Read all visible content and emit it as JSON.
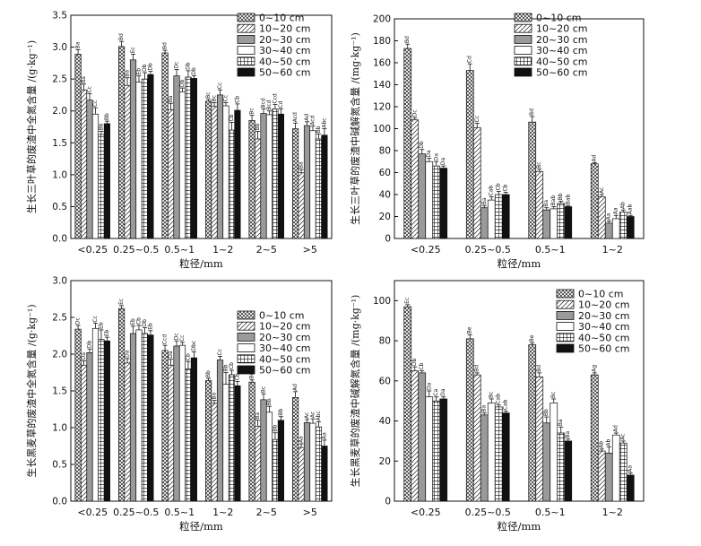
{
  "legend_entries": [
    "0~10 cm",
    "10~20 cm",
    "20~30 cm",
    "30~40 cm",
    "40~50 cm",
    "50~60 cm"
  ],
  "chart_data": [
    {
      "type": "bar",
      "ylabel": "生长三叶草的废渣中全氮含量 /(g·kg⁻¹)",
      "xlabel": "粒径/mm",
      "categories": [
        "<0.25",
        "0.25~0.5",
        "0.5~1",
        "1~2",
        "2~5",
        ">5"
      ],
      "ylim": [
        0,
        3.5
      ],
      "yticks": [
        0,
        0.5,
        1.0,
        1.5,
        2.0,
        2.5,
        3.0,
        3.5
      ],
      "series": [
        {
          "name": "0~10 cm",
          "values": [
            2.89,
            3.01,
            2.91,
            2.15,
            1.85,
            1.72
          ],
          "errors": [
            0.07,
            0.08,
            0.04,
            0.03,
            0.08,
            0.09
          ],
          "labels": [
            "Ba",
            "Bd",
            "Bd",
            "Bc",
            "Bc",
            "Acd"
          ]
        },
        {
          "name": "10~20 cm",
          "values": [
            2.33,
            2.4,
            2.02,
            2.07,
            1.56,
            1.03
          ],
          "errors": [
            0.09,
            0.12,
            0.1,
            0.06,
            0.12,
            0.05
          ],
          "labels": [
            "Ba",
            "Ba",
            "Ba",
            "Bc",
            "Bb",
            "Ba"
          ]
        },
        {
          "name": "20~30 cm",
          "values": [
            2.17,
            2.8,
            2.55,
            2.25,
            1.96,
            1.77
          ],
          "errors": [
            0.1,
            0.09,
            0.1,
            0.08,
            0.07,
            0.06
          ],
          "labels": [
            "Cc",
            "Ec",
            "Dc",
            "Cc",
            "Bcd",
            "Ad"
          ]
        },
        {
          "name": "30~40 cm",
          "values": [
            1.95,
            2.45,
            2.3,
            2.08,
            1.94,
            1.69
          ],
          "errors": [
            0.1,
            0.1,
            0.06,
            0.05,
            0.06,
            0.07
          ],
          "labels": [
            "Cc",
            "Eb",
            "Db",
            "Cc",
            "Bcd",
            "Acd"
          ]
        },
        {
          "name": "40~50 cm",
          "values": [
            1.63,
            2.5,
            2.53,
            1.7,
            2.03,
            1.56
          ],
          "errors": [
            0.05,
            0.1,
            0.1,
            0.12,
            0.07,
            0.08
          ],
          "labels": [
            "Bb",
            "Db",
            "Db",
            "Cb",
            "Ccd",
            "Bb"
          ]
        },
        {
          "name": "50~60 cm",
          "values": [
            1.8,
            2.57,
            2.51,
            2.01,
            1.95,
            1.62
          ],
          "errors": [
            0.04,
            0.05,
            0.04,
            0.1,
            0.08,
            0.1
          ],
          "labels": [
            "Bb",
            "Db",
            "Db",
            "Cb",
            "Cd",
            "Abc"
          ]
        }
      ]
    },
    {
      "type": "bar",
      "ylabel": "生长三叶草的废渣中碱解氮含量 /(mg·kg⁻¹)",
      "xlabel": "粒径/mm",
      "categories": [
        "<0.25",
        "0.25~0.5",
        "0.5~1",
        "1~2"
      ],
      "ylim": [
        0,
        200
      ],
      "yticks": [
        0,
        20,
        40,
        60,
        80,
        100,
        120,
        140,
        160,
        180,
        200
      ],
      "series": [
        {
          "name": "0~10 cm",
          "values": [
            173,
            153,
            106,
            68
          ],
          "errors": [
            4,
            6,
            5,
            1
          ],
          "labels": [
            "Bd",
            "Cd",
            "Bd",
            "Ad"
          ]
        },
        {
          "name": "10~20 cm",
          "values": [
            108,
            101,
            61,
            38
          ],
          "errors": [
            2,
            4,
            2,
            2
          ],
          "labels": [
            "Dc",
            "Cc",
            "Bc",
            "Ac"
          ]
        },
        {
          "name": "20~30 cm",
          "values": [
            77,
            28,
            26,
            14
          ],
          "errors": [
            4,
            2,
            2,
            2
          ],
          "labels": [
            "Db",
            "Ba",
            "Ba",
            "Aa"
          ]
        },
        {
          "name": "30~40 cm",
          "values": [
            70,
            35,
            27,
            18
          ],
          "errors": [
            3,
            3,
            2,
            3
          ],
          "labels": [
            "Da",
            "Cab",
            "Bab",
            "Aa"
          ]
        },
        {
          "name": "40~50 cm",
          "values": [
            66,
            40,
            32,
            24
          ],
          "errors": [
            4,
            3,
            2,
            2
          ],
          "labels": [
            "Da",
            "Cb",
            "Bb",
            "Ab"
          ]
        },
        {
          "name": "50~60 cm",
          "values": [
            64,
            40,
            29,
            20
          ],
          "errors": [
            2,
            2,
            1,
            1
          ],
          "labels": [
            "Da",
            "Cb",
            "Bab",
            "Aab"
          ]
        }
      ]
    },
    {
      "type": "bar",
      "ylabel": "生长黑麦草的废渣中全氮含量 /(g·kg⁻¹)",
      "xlabel": "粒径/mm",
      "categories": [
        "<0.25",
        "0.25~0.5",
        "0.5~1",
        "1~2",
        "2~5",
        ">5"
      ],
      "ylim": [
        0,
        3.0
      ],
      "yticks": [
        0,
        0.5,
        1.0,
        1.5,
        2.0,
        2.5,
        3.0
      ],
      "series": [
        {
          "name": "0~10 cm",
          "values": [
            2.34,
            2.62,
            2.05,
            1.64,
            1.62,
            1.41
          ],
          "errors": [
            0.05,
            0.04,
            0.07,
            0.03,
            0.03,
            0.08
          ],
          "labels": [
            "Dc",
            "Ec",
            "Ccd",
            "Bb",
            "Bd",
            "Ad"
          ]
        },
        {
          "name": "10~20 cm",
          "values": [
            1.85,
            1.88,
            1.85,
            1.33,
            1.02,
            0.73
          ],
          "errors": [
            0.06,
            0.06,
            0.08,
            0.04,
            0.08,
            0.05
          ],
          "labels": [
            "Da",
            "Da",
            "Da",
            "Ba",
            "Ba",
            "Aa"
          ]
        },
        {
          "name": "20~30 cm",
          "values": [
            2.02,
            2.28,
            2.11,
            1.92,
            1.38,
            1.07
          ],
          "errors": [
            0.05,
            0.1,
            0.07,
            0.05,
            0.08,
            0.04
          ],
          "labels": [
            "Db",
            "Eb",
            "Dc",
            "Cc",
            "Bc",
            "Ac"
          ]
        },
        {
          "name": "30~40 cm",
          "values": [
            2.35,
            2.33,
            2.12,
            1.59,
            1.21,
            1.06
          ],
          "errors": [
            0.07,
            0.06,
            0.04,
            0.16,
            0.08,
            0.06
          ],
          "labels": [
            "Cc",
            "Cb",
            "Cc",
            "Bb",
            "Bb",
            "Ac"
          ]
        },
        {
          "name": "40~50 cm",
          "values": [
            2.2,
            2.28,
            1.8,
            1.72,
            0.84,
            1.01
          ],
          "errors": [
            0.13,
            0.08,
            0.1,
            0.06,
            0.09,
            0.07
          ],
          "labels": [
            "Eb",
            "Db",
            "Cb",
            "Cb",
            "Bb",
            "Abc"
          ]
        },
        {
          "name": "50~60 cm",
          "values": [
            2.18,
            2.26,
            1.95,
            1.57,
            1.1,
            0.75
          ],
          "errors": [
            0.05,
            0.06,
            0.08,
            0.06,
            0.05,
            0.08
          ],
          "labels": [
            "Eb",
            "Eb",
            "Dbc",
            "Cb",
            "Bb",
            "Aa"
          ]
        }
      ]
    },
    {
      "type": "bar",
      "ylabel": "生长黑麦草的废渣中碱解氮含量 /(mg·kg⁻¹)",
      "xlabel": "粒径/mm",
      "categories": [
        "<0.25",
        "0.25~0.5",
        "0.5~1",
        "1~2"
      ],
      "ylim": [
        0,
        110
      ],
      "yticks": [
        0,
        20,
        40,
        60,
        80,
        100
      ],
      "series": [
        {
          "name": "0~10 cm",
          "values": [
            97,
            81,
            78,
            63
          ],
          "errors": [
            1,
            2,
            1,
            1
          ],
          "labels": [
            "Ec",
            "Be",
            "Be",
            "Ag"
          ]
        },
        {
          "name": "10~20 cm",
          "values": [
            65,
            63,
            62,
            25
          ],
          "errors": [
            2,
            1,
            2,
            1
          ],
          "labels": [
            "Db",
            "Bd",
            "Bd",
            "Ab"
          ]
        },
        {
          "name": "20~30 cm",
          "values": [
            64,
            43,
            39,
            24
          ],
          "errors": [
            1,
            1,
            3,
            3
          ],
          "labels": [
            "Cb",
            "Ba",
            "Bb",
            "Ab"
          ]
        },
        {
          "name": "30~40 cm",
          "values": [
            52,
            49,
            49,
            33
          ],
          "errors": [
            3,
            2,
            2,
            1
          ],
          "labels": [
            "Da",
            "Bc",
            "Bc",
            "Ad"
          ]
        },
        {
          "name": "40~50 cm",
          "values": [
            50,
            47,
            34,
            29
          ],
          "errors": [
            2,
            1,
            3,
            1
          ],
          "labels": [
            "Ca",
            "Cab",
            "Ba",
            "Ac"
          ]
        },
        {
          "name": "50~60 cm",
          "values": [
            51,
            44,
            30,
            13
          ],
          "errors": [
            1,
            1,
            1,
            1
          ],
          "labels": [
            "Da",
            "Cab",
            "Ba",
            "Aa"
          ]
        }
      ]
    }
  ]
}
